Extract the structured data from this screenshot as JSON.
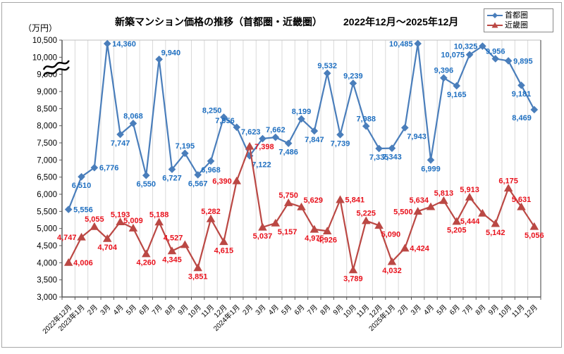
{
  "window": {
    "background": "#ffffff",
    "border_color": "#a7a7a7"
  },
  "header": {
    "unit_label": "（万円）",
    "title": "新築マンション価格の推移（首都圏・近畿圏）",
    "period": "2022年12月～2025年12月"
  },
  "chart_data": {
    "type": "line",
    "title": "新築マンション価格の推移（首都圏・近畿圏）",
    "subtitle": "2022年12月～2025年12月",
    "ylabel": "（万円）",
    "ylim": [
      3000,
      10500
    ],
    "ytick_labels": [
      "10,500",
      "10,000",
      "9,500",
      "9,000",
      "8,500",
      "8,000",
      "7,500",
      "7,000",
      "6,500",
      "6,000",
      "5,500",
      "5,000",
      "4,500",
      "4,000",
      "3,500",
      "3,000"
    ],
    "grid": "vertical-only",
    "legend_position": "top-right",
    "categories": [
      "2022年12月",
      "2023年1月",
      "2月",
      "3月",
      "4月",
      "5月",
      "6月",
      "7月",
      "8月",
      "9月",
      "10月",
      "11月",
      "12月",
      "2024年1月",
      "2月",
      "3月",
      "4月",
      "5月",
      "6月",
      "7月",
      "8月",
      "9月",
      "10月",
      "11月",
      "12月",
      "2025年1月",
      "2月",
      "3月",
      "4月",
      "5月",
      "6月",
      "7月",
      "8月",
      "9月",
      "10月",
      "11月",
      "12月"
    ],
    "series": [
      {
        "name": "首都圏",
        "marker": "diamond",
        "line_color": "#4a7ebb",
        "label_color": "#1f6fc0",
        "values": [
          5556,
          6510,
          6776,
          14360,
          7747,
          8068,
          6550,
          9940,
          6727,
          7195,
          6567,
          6968,
          8250,
          7956,
          7122,
          7623,
          7662,
          7486,
          8199,
          7847,
          9532,
          7739,
          9239,
          7988,
          7335,
          7343,
          7943,
          10485,
          6999,
          9396,
          9165,
          10075,
          10325,
          9956,
          9895,
          9181,
          8469
        ],
        "label_sides": [
          "r",
          "b",
          "r",
          "r",
          "b",
          "a",
          "b",
          "ar",
          "b",
          "a",
          "b",
          "b",
          "al",
          "al",
          "br",
          "al",
          "a",
          "b",
          "a",
          "b",
          "a",
          "b",
          "a",
          "a",
          "b",
          "b",
          "br",
          "l",
          "b",
          "a",
          "b",
          "l",
          "l",
          "a",
          "r",
          "b",
          "bl"
        ]
      },
      {
        "name": "近畿圏",
        "marker": "triangle",
        "line_color": "#bb4844",
        "label_color": "#e8111c",
        "values": [
          4006,
          4747,
          5055,
          4704,
          5193,
          5009,
          4260,
          5188,
          4345,
          4527,
          3851,
          5282,
          4615,
          6390,
          7398,
          5037,
          5157,
          5750,
          5629,
          4975,
          4926,
          5841,
          3789,
          5225,
          5090,
          4032,
          4424,
          5500,
          5634,
          5813,
          5205,
          5913,
          5444,
          5142,
          6175,
          5631,
          5056
        ],
        "label_sides": [
          "r",
          "l",
          "a",
          "b",
          "a",
          "a",
          "b",
          "a",
          "b",
          "al",
          "b",
          "a",
          "b",
          "l",
          "r",
          "b",
          "br",
          "a",
          "ar",
          "b",
          "b",
          "r",
          "b",
          "a",
          "br",
          "b",
          "r",
          "l",
          "al",
          "a",
          "b",
          "a",
          "bl",
          "b",
          "a",
          "a",
          "b"
        ]
      }
    ],
    "axis_break": {
      "category": "2023年3月",
      "value": 14360,
      "clipped_to_axis_top": true
    }
  }
}
